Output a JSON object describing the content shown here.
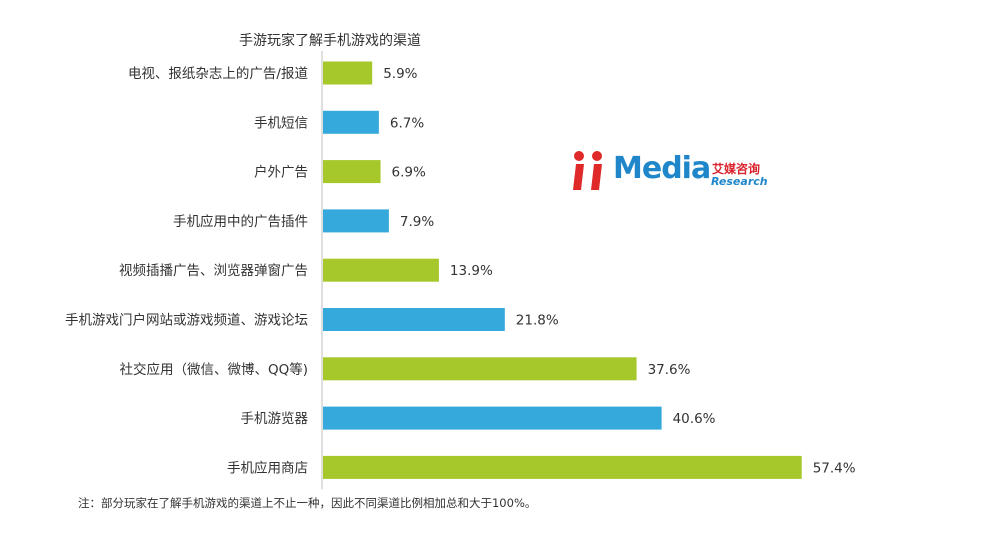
{
  "chart_data": {
    "type": "bar",
    "orientation": "horizontal",
    "title": "手游玩家了解手机游戏的渠道",
    "categories": [
      "电视、报纸杂志上的广告/报道",
      "手机短信",
      "户外广告",
      "手机应用中的广告插件",
      "视频插播广告、浏览器弹窗广告",
      "手机游戏门户网站或游戏频道、游戏论坛",
      "社交应用（微信、微博、QQ等)",
      "手机游览器",
      "手机应用商店"
    ],
    "values": [
      5.9,
      6.7,
      6.9,
      7.9,
      13.9,
      21.8,
      37.6,
      40.6,
      57.4
    ],
    "value_labels": [
      "5.9%",
      "6.7%",
      "6.9%",
      "7.9%",
      "13.9%",
      "21.8%",
      "37.6%",
      "40.6%",
      "57.4%"
    ],
    "bar_colors": [
      "#a6c82a",
      "#35a8dc",
      "#a6c82a",
      "#35a8dc",
      "#a6c82a",
      "#35a8dc",
      "#a6c82a",
      "#35a8dc",
      "#a6c82a"
    ],
    "xlim": [
      0,
      60
    ],
    "grid": false,
    "legend": "none"
  },
  "footnote": "注：部分玩家在了解手机游戏的渠道上不止一种，因此不同渠道比例相加总和大于100%。",
  "watermark": {
    "brand": "Media",
    "cn": "艾媒咨询",
    "en": "Research"
  },
  "colors": {
    "green": "#a6c82a",
    "blue": "#35a8dc",
    "text": "#333333",
    "axis": "#bfbfbf"
  }
}
